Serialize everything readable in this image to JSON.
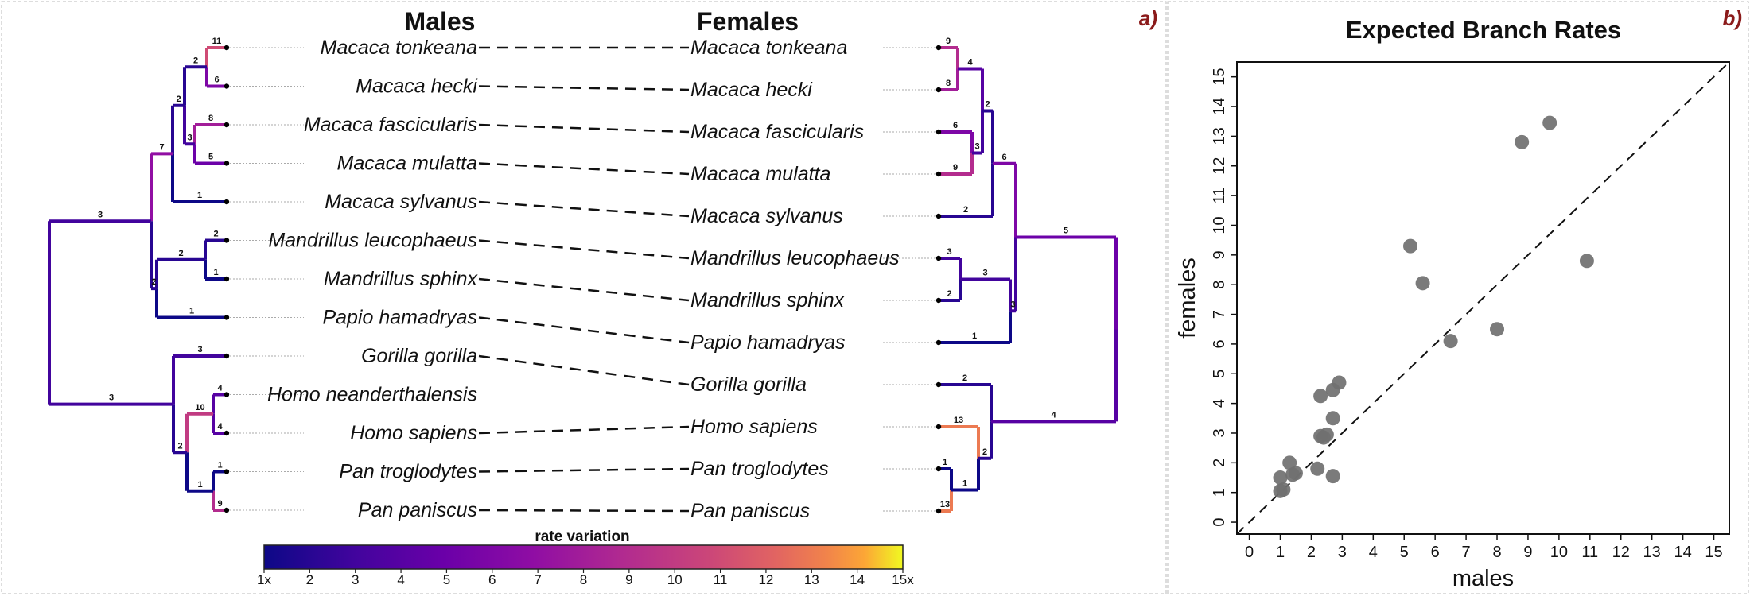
{
  "panels": {
    "a": {
      "label": "a)",
      "left_heading": "Males",
      "right_heading": "Females",
      "colorbar": {
        "title": "rate variation",
        "tick_labels": [
          "1x",
          "2",
          "3",
          "4",
          "5",
          "6",
          "7",
          "8",
          "9",
          "10",
          "11",
          "12",
          "13",
          "14",
          "15x"
        ]
      }
    },
    "b": {
      "label": "b)"
    }
  },
  "chart_data": [
    {
      "type": "tree",
      "title": "",
      "left_tree": {
        "tips": [
          {
            "name": "Macaca tonkeana",
            "rate": 11
          },
          {
            "name": "Macaca hecki",
            "rate": 6
          },
          {
            "name": "Macaca fascicularis",
            "rate": 8
          },
          {
            "name": "Macaca mulatta",
            "rate": 5
          },
          {
            "name": "Macaca sylvanus",
            "rate": 1
          },
          {
            "name": "Mandrillus leucophaeus",
            "rate": 2
          },
          {
            "name": "Mandrillus sphinx",
            "rate": 1
          },
          {
            "name": "Papio hamadryas",
            "rate": 1
          },
          {
            "name": "Gorilla gorilla",
            "rate": 3
          },
          {
            "name": "Homo neanderthalensis",
            "rate": 4
          },
          {
            "name": "Homo sapiens",
            "rate": 4
          },
          {
            "name": "Pan troglodytes",
            "rate": 1
          },
          {
            "name": "Pan paniscus",
            "rate": 9
          }
        ],
        "internal_branch_rates": [
          2,
          3,
          2,
          7,
          2,
          2,
          3,
          10,
          1,
          2,
          3
        ]
      },
      "right_tree": {
        "tips": [
          {
            "name": "Macaca tonkeana",
            "rate": 9
          },
          {
            "name": "Macaca hecki",
            "rate": 8
          },
          {
            "name": "Macaca fascicularis",
            "rate": 6
          },
          {
            "name": "Macaca mulatta",
            "rate": 9
          },
          {
            "name": "Macaca sylvanus",
            "rate": 2
          },
          {
            "name": "Mandrillus leucophaeus",
            "rate": 3
          },
          {
            "name": "Mandrillus sphinx",
            "rate": 2
          },
          {
            "name": "Papio hamadryas",
            "rate": 1
          },
          {
            "name": "Gorilla gorilla",
            "rate": 2
          },
          {
            "name": "Homo sapiens",
            "rate": 13
          },
          {
            "name": "Pan troglodytes",
            "rate": 1
          },
          {
            "name": "Pan paniscus",
            "rate": 13
          }
        ],
        "internal_branch_rates": [
          4,
          3,
          2,
          6,
          3,
          3,
          5,
          1,
          2,
          4
        ]
      }
    },
    {
      "type": "scatter",
      "title": "Expected Branch Rates",
      "xlabel": "males",
      "ylabel": "females",
      "xlim": [
        0,
        15
      ],
      "ylim": [
        0,
        15
      ],
      "x_ticks": [
        "0",
        "1",
        "2",
        "3",
        "4",
        "5",
        "6",
        "7",
        "8",
        "9",
        "10",
        "11",
        "12",
        "13",
        "14",
        "15"
      ],
      "y_ticks": [
        "0",
        "1",
        "2",
        "3",
        "4",
        "5",
        "6",
        "7",
        "8",
        "9",
        "10",
        "11",
        "12",
        "13",
        "14",
        "15"
      ],
      "reference_line": "y = x (dashed)",
      "point_color": "#707070",
      "points": [
        {
          "x": 1.0,
          "y": 1.05
        },
        {
          "x": 1.1,
          "y": 1.1
        },
        {
          "x": 1.0,
          "y": 1.5
        },
        {
          "x": 1.3,
          "y": 2.0
        },
        {
          "x": 1.4,
          "y": 1.6
        },
        {
          "x": 1.5,
          "y": 1.65
        },
        {
          "x": 2.2,
          "y": 1.8
        },
        {
          "x": 2.7,
          "y": 1.55
        },
        {
          "x": 2.3,
          "y": 2.9
        },
        {
          "x": 2.4,
          "y": 2.85
        },
        {
          "x": 2.5,
          "y": 2.95
        },
        {
          "x": 2.7,
          "y": 3.5
        },
        {
          "x": 2.3,
          "y": 4.25
        },
        {
          "x": 2.7,
          "y": 4.45
        },
        {
          "x": 2.9,
          "y": 4.7
        },
        {
          "x": 5.2,
          "y": 9.3
        },
        {
          "x": 5.6,
          "y": 8.05
        },
        {
          "x": 6.5,
          "y": 6.1
        },
        {
          "x": 8.0,
          "y": 6.5
        },
        {
          "x": 8.8,
          "y": 12.8
        },
        {
          "x": 9.7,
          "y": 13.45
        },
        {
          "x": 10.9,
          "y": 8.8
        }
      ]
    }
  ]
}
